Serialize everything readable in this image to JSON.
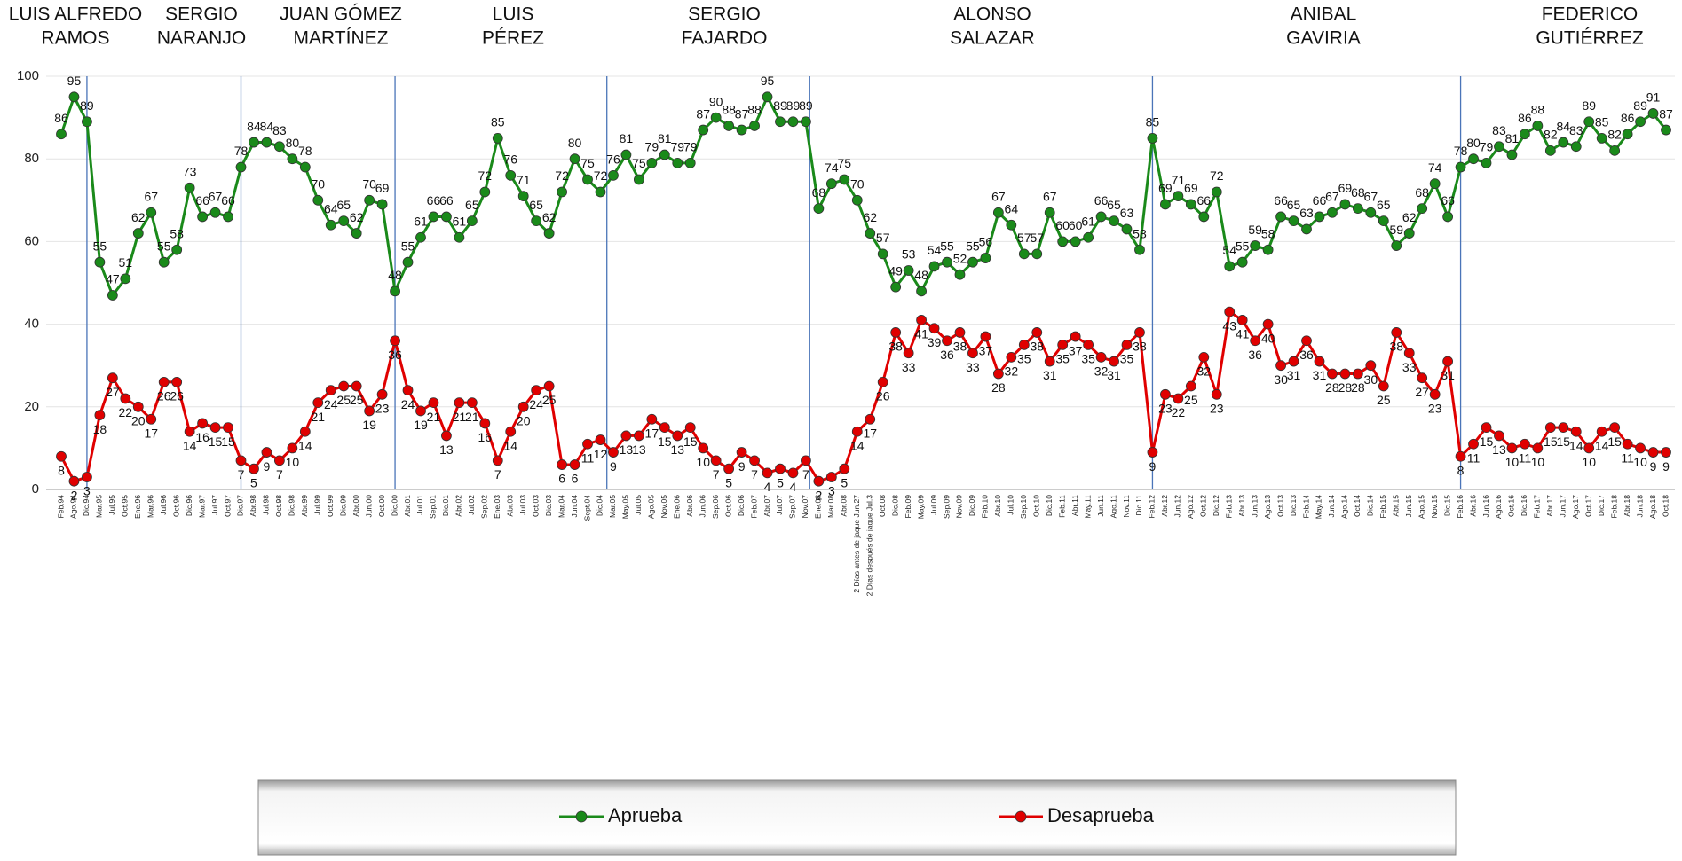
{
  "chart_data": {
    "type": "line",
    "presidents": [
      [
        "LUIS ALFREDO",
        "RAMOS"
      ],
      [
        "SERGIO",
        "NARANJO"
      ],
      [
        "JUAN GÓMEZ",
        "MARTÍNEZ"
      ],
      [
        "LUIS",
        "PÉREZ"
      ],
      [
        "SERGIO",
        "FAJARDO"
      ],
      [
        "ALONSO",
        "SALAZAR"
      ],
      [
        "ANIBAL",
        "GAVIRIA"
      ],
      [
        "FEDERICO",
        "GUTIÉRREZ"
      ]
    ],
    "categories": [
      "Feb.94",
      "Ago.94",
      "Dic.94",
      "Mar.95",
      "Jul.95",
      "Oct.95",
      "Ene.96",
      "Mar.96",
      "Jul.96",
      "Oct.96",
      "Dic.96",
      "Mar.97",
      "Jul.97",
      "Oct.97",
      "Dic.97",
      "Abr.98",
      "Jul.98",
      "Oct.98",
      "Dic.98",
      "Abr.99",
      "Jul.99",
      "Oct.99",
      "Dic.99",
      "Abr.00",
      "Jun.00",
      "Oct.00",
      "Dic.00",
      "Abr.01",
      "Jul.01",
      "Sep.01",
      "Dic.01",
      "Abr.02",
      "Jul.02",
      "Sep.02",
      "Ene.03",
      "Abr.03",
      "Jul.03",
      "Oct.03",
      "Dic.03",
      "Mar.04",
      "Jun.04",
      "Sept.04",
      "Dic.04",
      "Mar.05",
      "May.05",
      "Jul.05",
      "Ago.05",
      "Nov.05",
      "Ene.06",
      "Abr.06",
      "Jun.06",
      "Sep.06",
      "Oct.06",
      "Dic.06",
      "Feb.07",
      "Abr.07",
      "Jul.07",
      "Sep.07",
      "Nov.07",
      "Ene.08",
      "Mar.08",
      "Abr.08",
      "2 Días antes de jaque Jun.27",
      "2 Días después de jaque Jul.3",
      "Oct.08",
      "Dic.08",
      "Feb.09",
      "May.09",
      "Jul.09",
      "Sep.09",
      "Nov.09",
      "Dic.09",
      "Feb.10",
      "Abr.10",
      "Jul.10",
      "Sep.10",
      "Oct.10",
      "Dic.10",
      "Feb.11",
      "Abr.11",
      "May.11",
      "Jun.11",
      "Ago.11",
      "Nov.11",
      "Dic.11",
      "Feb.12",
      "Abr.12",
      "Jun.12",
      "Ago.12",
      "Oct.12",
      "Dic.12",
      "Feb.13",
      "Abr.13",
      "Jun.13",
      "Ago.13",
      "Oct.13",
      "Dic.13",
      "Feb.14",
      "May.14",
      "Jun.14",
      "Ago.14",
      "Oct.14",
      "Dic.14",
      "Feb.15",
      "Abr.15",
      "Jun.15",
      "Ago.15",
      "Nov.15",
      "Dic.15",
      "Feb.16",
      "Abr.16",
      "Jun.16",
      "Ago.16",
      "Oct.16",
      "Dic.16",
      "Feb.17",
      "Abr.17",
      "Jun.17",
      "Ago.17",
      "Oct.17",
      "Dic.17",
      "Feb.18",
      "Abr.18",
      "Jun.18",
      "Ago.18",
      "Oct.18"
    ],
    "series": [
      {
        "name": "Aprueba",
        "color": "#1a8a1a",
        "values": [
          86,
          95,
          89,
          55,
          47,
          51,
          62,
          67,
          55,
          58,
          73,
          66,
          67,
          66,
          78,
          84,
          84,
          83,
          80,
          78,
          70,
          64,
          65,
          62,
          70,
          69,
          48,
          55,
          61,
          66,
          66,
          61,
          65,
          72,
          85,
          76,
          71,
          65,
          62,
          72,
          80,
          75,
          72,
          76,
          81,
          75,
          79,
          81,
          79,
          79,
          87,
          90,
          88,
          87,
          88,
          95,
          89,
          89,
          89,
          68,
          74,
          75,
          70,
          62,
          57,
          49,
          53,
          48,
          54,
          55,
          52,
          55,
          56,
          67,
          64,
          57,
          57,
          67,
          60,
          60,
          61,
          66,
          65,
          63,
          58,
          85,
          69,
          71,
          69,
          66,
          72,
          54,
          55,
          59,
          58,
          66,
          65,
          63,
          66,
          67,
          69,
          68,
          67,
          65,
          59,
          62,
          68,
          74,
          66,
          78,
          80,
          79,
          83,
          81,
          86,
          88,
          82,
          84,
          83,
          89,
          85,
          82,
          86,
          89,
          91,
          87
        ]
      },
      {
        "name": "Desaprueba",
        "color": "#e00000",
        "values": [
          8,
          2,
          3,
          18,
          27,
          22,
          20,
          17,
          26,
          26,
          14,
          16,
          15,
          15,
          7,
          5,
          9,
          7,
          10,
          14,
          21,
          24,
          25,
          25,
          19,
          23,
          36,
          24,
          19,
          21,
          13,
          21,
          21,
          16,
          7,
          14,
          20,
          24,
          25,
          6,
          6,
          11,
          12,
          9,
          13,
          13,
          17,
          15,
          13,
          15,
          10,
          7,
          5,
          9,
          7,
          4,
          5,
          4,
          7,
          2,
          3,
          5,
          14,
          17,
          26,
          38,
          33,
          41,
          39,
          36,
          38,
          33,
          37,
          28,
          32,
          35,
          38,
          31,
          35,
          37,
          35,
          32,
          31,
          35,
          38,
          9,
          23,
          22,
          25,
          32,
          23,
          43,
          41,
          36,
          40,
          30,
          31,
          36,
          31,
          28,
          28,
          28,
          30,
          25,
          38,
          33,
          27,
          23,
          31,
          8,
          11,
          15,
          13,
          10,
          11,
          10,
          15,
          15,
          14,
          10,
          14,
          15,
          11,
          10,
          9,
          9
        ]
      }
    ],
    "ylim": [
      0,
      100
    ],
    "yticks": [
      0,
      20,
      40,
      60,
      80,
      100
    ],
    "grid": true
  }
}
